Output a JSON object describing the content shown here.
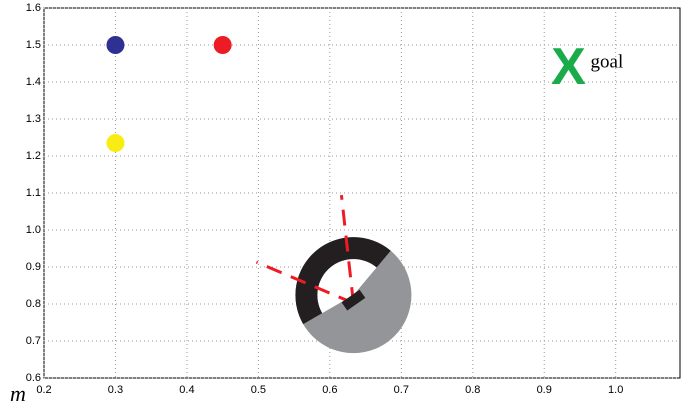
{
  "chart_data": {
    "type": "scatter",
    "xlabel": "m",
    "xlim": [
      0.2,
      1.09
    ],
    "ylim": [
      0.6,
      1.6
    ],
    "xticks": [
      0.2,
      0.3,
      0.4,
      0.5,
      0.6,
      0.7,
      0.8,
      0.9,
      {
        "value": 1,
        "label": "1.0"
      }
    ],
    "yticks": [
      0.6,
      0.7,
      0.8,
      0.9,
      {
        "value": 1,
        "label": "1.0"
      },
      1.1,
      1.2,
      1.3,
      1.4,
      1.5,
      1.6
    ],
    "grid": true,
    "points": [
      {
        "x": 0.3,
        "y": 1.5,
        "color": "#2e3192"
      },
      {
        "x": 0.45,
        "y": 1.5,
        "color": "#ed1c24"
      },
      {
        "x": 0.3,
        "y": 1.235,
        "color": "#f7ec13"
      }
    ],
    "goal": {
      "x": 0.934,
      "y": 1.44,
      "symbol": "X",
      "label": "goal",
      "color": "#1aab4a"
    },
    "robot": {
      "x": 0.633,
      "y": 0.824
    }
  }
}
